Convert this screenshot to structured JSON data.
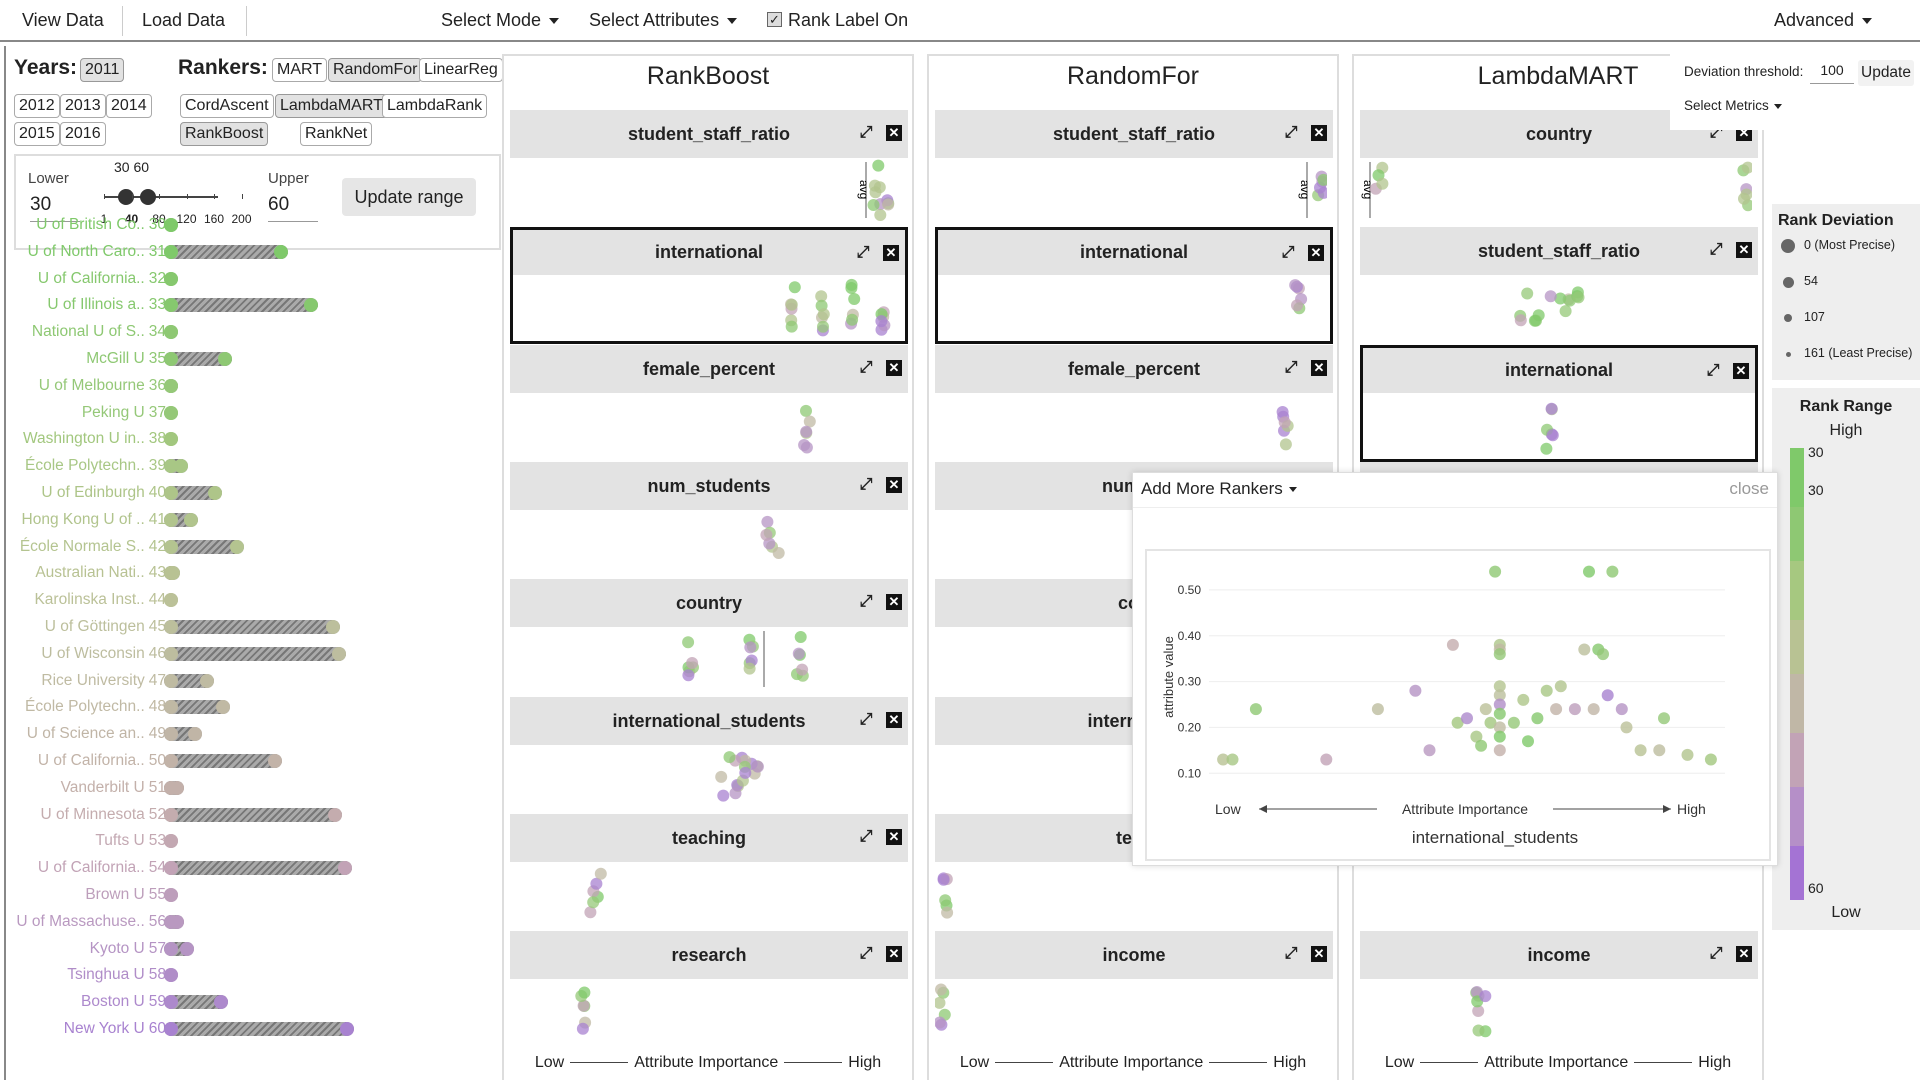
{
  "topbar": {
    "view_data": "View Data",
    "load_data": "Load Data",
    "select_mode": "Select Mode",
    "select_attributes": "Select Attributes",
    "rank_label": "Rank Label On",
    "advanced": "Advanced"
  },
  "years": {
    "label": "Years:",
    "items": [
      "2011",
      "2012",
      "2013",
      "2014",
      "2015",
      "2016"
    ],
    "selected": "2011"
  },
  "rankers": {
    "label": "Rankers:",
    "items": [
      "MART",
      "RandomFor",
      "LinearReg",
      "CordAscent",
      "LambdaMART",
      "LambdaRank",
      "RankBoost",
      "RankNet"
    ],
    "selected": [
      "RandomFor",
      "LambdaMART",
      "RankBoost"
    ]
  },
  "range": {
    "lower_label": "Lower",
    "upper_label": "Upper",
    "lower_value": "30",
    "upper_value": "60",
    "slider_readout": "30 60",
    "ticks": [
      "1",
      "40",
      "80",
      "120",
      "160",
      "200"
    ],
    "update_button": "Update range"
  },
  "universities": [
    {
      "name": "U of British Co..",
      "rank": "30",
      "color": "#7fc96a",
      "spread": 0.0
    },
    {
      "name": "U of North Caro..",
      "rank": "31",
      "color": "#7fc96a",
      "spread": 0.62
    },
    {
      "name": "U of California..",
      "rank": "32",
      "color": "#86c86e",
      "spread": 0.04
    },
    {
      "name": "U of Illinois a..",
      "rank": "33",
      "color": "#86c86e",
      "spread": 0.77
    },
    {
      "name": "National U of S..",
      "rank": "34",
      "color": "#8ec873",
      "spread": 0.03
    },
    {
      "name": "McGill U",
      "rank": "35",
      "color": "#8ec873",
      "spread": 0.34
    },
    {
      "name": "U of Melbourne",
      "rank": "36",
      "color": "#95c878",
      "spread": 0.06
    },
    {
      "name": "Peking U",
      "rank": "37",
      "color": "#95c878",
      "spread": 0.03
    },
    {
      "name": "Washington U in..",
      "rank": "38",
      "color": "#a2c77e",
      "spread": 0.02
    },
    {
      "name": "École Polytechn..",
      "rank": "39",
      "color": "#a8c785",
      "spread": 0.12
    },
    {
      "name": "U of Edinburgh",
      "rank": "40",
      "color": "#aec589",
      "spread": 0.29
    },
    {
      "name": "Hong Kong U of ..",
      "rank": "41",
      "color": "#b1c48d",
      "spread": 0.17
    },
    {
      "name": "École Normale S..",
      "rank": "42",
      "color": "#b4c490",
      "spread": 0.4
    },
    {
      "name": "Australian Nati..",
      "rank": "43",
      "color": "#b8c293",
      "spread": 0.08
    },
    {
      "name": "Karolinska Inst..",
      "rank": "44",
      "color": "#bbc198",
      "spread": 0.04
    },
    {
      "name": "U of Göttingen",
      "rank": "45",
      "color": "#bcbf9c",
      "spread": 0.88
    },
    {
      "name": "U of Wisconsin",
      "rank": "46",
      "color": "#bdbd9f",
      "spread": 0.91
    },
    {
      "name": "Rice University",
      "rank": "47",
      "color": "#bfbba2",
      "spread": 0.25
    },
    {
      "name": "École Polytechn..",
      "rank": "48",
      "color": "#c0b9a4",
      "spread": 0.33
    },
    {
      "name": "U of Science an..",
      "rank": "49",
      "color": "#c0b5a6",
      "spread": 0.19
    },
    {
      "name": "U of California..",
      "rank": "50",
      "color": "#c2b3a8",
      "spread": 0.59
    },
    {
      "name": "Vanderbilt U",
      "rank": "51",
      "color": "#c3b0aa",
      "spread": 0.1
    },
    {
      "name": "U of Minnesota",
      "rank": "52",
      "color": "#c4acae",
      "spread": 0.89
    },
    {
      "name": "Tufts U",
      "rank": "53",
      "color": "#c3a8b2",
      "spread": 0.02
    },
    {
      "name": "U of California..",
      "rank": "54",
      "color": "#c2a3b6",
      "spread": 0.94
    },
    {
      "name": "Brown U",
      "rank": "55",
      "color": "#bd9ebb",
      "spread": 0.02
    },
    {
      "name": "U of Massachuse..",
      "rank": "56",
      "color": "#b999c0",
      "spread": 0.1
    },
    {
      "name": "Kyoto U",
      "rank": "57",
      "color": "#b594c4",
      "spread": 0.15
    },
    {
      "name": "Tsinghua U",
      "rank": "58",
      "color": "#b08dc8",
      "spread": 0.05
    },
    {
      "name": "Boston U",
      "rank": "59",
      "color": "#ad89cc",
      "spread": 0.32
    },
    {
      "name": "New York U",
      "rank": "60",
      "color": "#a882d0",
      "spread": 0.95
    }
  ],
  "columns": [
    {
      "title": "RankBoost",
      "footer": {
        "low": "Low",
        "mid": "Attribute Importance",
        "high": "High"
      },
      "attributes": [
        {
          "name": "student_staff_ratio",
          "avg": "avg",
          "highlighted": false
        },
        {
          "name": "international",
          "highlighted": true
        },
        {
          "name": "female_percent",
          "highlighted": false
        },
        {
          "name": "num_students",
          "highlighted": false
        },
        {
          "name": "country",
          "highlighted": false
        },
        {
          "name": "international_students",
          "highlighted": false
        },
        {
          "name": "teaching",
          "highlighted": false
        },
        {
          "name": "research",
          "highlighted": false
        }
      ]
    },
    {
      "title": "RandomFor",
      "footer": {
        "low": "Low",
        "mid": "Attribute Importance",
        "high": "High"
      },
      "attributes": [
        {
          "name": "student_staff_ratio",
          "avg": "avg",
          "highlighted": false
        },
        {
          "name": "international",
          "highlighted": true
        },
        {
          "name": "female_percent",
          "highlighted": false
        },
        {
          "name": "num_st",
          "highlighted": false
        },
        {
          "name": "cou",
          "highlighted": false
        },
        {
          "name": "internation",
          "highlighted": false
        },
        {
          "name": "teac",
          "highlighted": false
        },
        {
          "name": "income",
          "highlighted": false
        }
      ]
    },
    {
      "title": "LambdaMART",
      "footer": {
        "low": "Low",
        "mid": "Attribute Importance",
        "high": "High"
      },
      "attributes": [
        {
          "name": "country",
          "avg": "avg",
          "highlighted": false
        },
        {
          "name": "student_staff_ratio",
          "highlighted": false
        },
        {
          "name": "international",
          "highlighted": true
        },
        {
          "name": "",
          "highlighted": false
        },
        {
          "name": "",
          "highlighted": false
        },
        {
          "name": "",
          "highlighted": false
        },
        {
          "name": "",
          "highlighted": false
        },
        {
          "name": "income",
          "highlighted": false
        }
      ]
    }
  ],
  "deviation": {
    "label": "Deviation threshold:",
    "value": "100",
    "update": "Update",
    "select_metrics": "Select Metrics"
  },
  "legend": {
    "deviation_title": "Rank Deviation",
    "deviation_items": [
      "0 (Most Precise)",
      "54",
      "107",
      "161 (Least Precise)"
    ],
    "range_title": "Rank Range",
    "high": "High",
    "low": "Low",
    "top_value_a": "30",
    "top_value_b": "30",
    "bottom_value": "60",
    "gradient": [
      "#7fc96a",
      "#8ec873",
      "#a6c880",
      "#b8c293",
      "#c0b7a6",
      "#c2a3b6",
      "#b58fc8",
      "#a473d4"
    ]
  },
  "popup": {
    "add_rankers": "Add More Rankers",
    "close": "close",
    "chart_data": {
      "type": "scatter",
      "xlabel": "",
      "ylabel": "attribute value",
      "title": "international_students",
      "x_axis_labels": {
        "low": "Low",
        "mid": "Attribute Importance",
        "high": "High"
      },
      "y_ticks": [
        "0.10",
        "0.20",
        "0.30",
        "0.40",
        "0.50"
      ],
      "ylim": [
        0.07,
        0.55
      ],
      "points": [
        {
          "x": 0.03,
          "y": 0.13,
          "c": "#b8c293"
        },
        {
          "x": 0.05,
          "y": 0.13,
          "c": "#a8c785"
        },
        {
          "x": 0.1,
          "y": 0.24,
          "c": "#8ec873"
        },
        {
          "x": 0.25,
          "y": 0.13,
          "c": "#c2a3b6"
        },
        {
          "x": 0.36,
          "y": 0.24,
          "c": "#bdbd9f"
        },
        {
          "x": 0.44,
          "y": 0.28,
          "c": "#b594c4"
        },
        {
          "x": 0.47,
          "y": 0.15,
          "c": "#b999c0"
        },
        {
          "x": 0.52,
          "y": 0.38,
          "c": "#c4acae"
        },
        {
          "x": 0.53,
          "y": 0.21,
          "c": "#a2c77e"
        },
        {
          "x": 0.55,
          "y": 0.22,
          "c": "#ad89cc"
        },
        {
          "x": 0.57,
          "y": 0.18,
          "c": "#a8c785"
        },
        {
          "x": 0.58,
          "y": 0.16,
          "c": "#8ec873"
        },
        {
          "x": 0.59,
          "y": 0.24,
          "c": "#bbc198"
        },
        {
          "x": 0.6,
          "y": 0.21,
          "c": "#a2c77e"
        },
        {
          "x": 0.61,
          "y": 0.54,
          "c": "#8ec873"
        },
        {
          "x": 0.62,
          "y": 0.38,
          "c": "#aec589"
        },
        {
          "x": 0.62,
          "y": 0.37,
          "c": "#c0b9a4"
        },
        {
          "x": 0.62,
          "y": 0.36,
          "c": "#95c878"
        },
        {
          "x": 0.62,
          "y": 0.29,
          "c": "#b4c490"
        },
        {
          "x": 0.62,
          "y": 0.27,
          "c": "#bcbf9c"
        },
        {
          "x": 0.62,
          "y": 0.25,
          "c": "#b08dc8"
        },
        {
          "x": 0.62,
          "y": 0.23,
          "c": "#86c86e"
        },
        {
          "x": 0.62,
          "y": 0.2,
          "c": "#bfbba2"
        },
        {
          "x": 0.62,
          "y": 0.18,
          "c": "#7fc96a"
        },
        {
          "x": 0.62,
          "y": 0.15,
          "c": "#c3b0aa"
        },
        {
          "x": 0.65,
          "y": 0.21,
          "c": "#95c878"
        },
        {
          "x": 0.67,
          "y": 0.26,
          "c": "#aec589"
        },
        {
          "x": 0.68,
          "y": 0.17,
          "c": "#7fc96a"
        },
        {
          "x": 0.7,
          "y": 0.22,
          "c": "#86c86e"
        },
        {
          "x": 0.72,
          "y": 0.28,
          "c": "#a8c785"
        },
        {
          "x": 0.74,
          "y": 0.24,
          "c": "#c2b3a8"
        },
        {
          "x": 0.75,
          "y": 0.29,
          "c": "#b1c48d"
        },
        {
          "x": 0.78,
          "y": 0.24,
          "c": "#bd9ebb"
        },
        {
          "x": 0.8,
          "y": 0.37,
          "c": "#bcbf9c"
        },
        {
          "x": 0.81,
          "y": 0.54,
          "c": "#7fc96a"
        },
        {
          "x": 0.82,
          "y": 0.24,
          "c": "#c0b5a6"
        },
        {
          "x": 0.83,
          "y": 0.37,
          "c": "#86c86e"
        },
        {
          "x": 0.84,
          "y": 0.36,
          "c": "#95c878"
        },
        {
          "x": 0.85,
          "y": 0.27,
          "c": "#a882d0"
        },
        {
          "x": 0.86,
          "y": 0.54,
          "c": "#8ec873"
        },
        {
          "x": 0.88,
          "y": 0.24,
          "c": "#b594c4"
        },
        {
          "x": 0.89,
          "y": 0.2,
          "c": "#bbc198"
        },
        {
          "x": 0.92,
          "y": 0.15,
          "c": "#b8c293"
        },
        {
          "x": 0.96,
          "y": 0.15,
          "c": "#bdbd9f"
        },
        {
          "x": 0.97,
          "y": 0.22,
          "c": "#95c878"
        },
        {
          "x": 1.02,
          "y": 0.14,
          "c": "#b1c48d"
        },
        {
          "x": 1.07,
          "y": 0.13,
          "c": "#a2c77e"
        }
      ]
    }
  }
}
